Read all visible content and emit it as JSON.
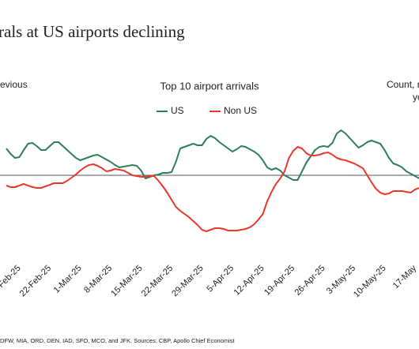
{
  "chart_data": {
    "type": "line",
    "title": "rals at US airports declining",
    "subtitle": "Top 10 airport arrivals",
    "left_axis_label": "evious",
    "right_axis_label": [
      "Count, re",
      "yo"
    ],
    "footnote": "DFW, MIA, ORD, DEN, IAD, SFO, MCO, and JFK. Sources: CBP, Apollo Chief Economist",
    "categories": [
      null,
      null,
      null,
      "Feb-25",
      null,
      null,
      null,
      null,
      null,
      null,
      "22-Feb-25",
      null,
      null,
      null,
      null,
      null,
      null,
      "1-Mar-25",
      null,
      null,
      null,
      null,
      null,
      null,
      "8-Mar-25",
      null,
      null,
      null,
      null,
      null,
      null,
      "15-Mar-25",
      null,
      null,
      null,
      null,
      null,
      null,
      "22-Mar-25",
      null,
      null,
      null,
      null,
      null,
      null,
      "29-Mar-25",
      null,
      null,
      null,
      null,
      null,
      null,
      "5-Apr-25",
      null,
      null,
      null,
      null,
      null,
      null,
      "12-Apr-25",
      null,
      null,
      null,
      null,
      null,
      null,
      "19-Apr-25",
      null,
      null,
      null,
      null,
      null,
      null,
      "26-Apr-25",
      null,
      null,
      null,
      null,
      null,
      null,
      "3-May-25",
      null,
      null,
      null,
      null,
      null,
      null,
      "10-May-25",
      null,
      null,
      null,
      null,
      null,
      null,
      "17-May",
      null
    ],
    "series": [
      {
        "name": "US",
        "color": "#2e7d5b",
        "values": [
          34,
          27,
          22,
          23,
          32,
          40,
          41,
          37,
          32,
          32,
          37,
          42,
          42,
          37,
          32,
          27,
          22,
          19,
          21,
          23,
          25,
          26,
          23,
          20,
          17,
          13,
          10,
          11,
          12,
          13,
          12,
          6,
          -4,
          -2,
          0,
          1,
          3,
          3,
          4,
          17,
          34,
          36,
          38,
          40,
          38,
          38,
          46,
          50,
          47,
          42,
          38,
          34,
          30,
          33,
          37,
          36,
          33,
          30,
          26,
          19,
          10,
          7,
          9,
          6,
          0,
          -3,
          -6,
          -6,
          5,
          16,
          24,
          32,
          36,
          37,
          36,
          41,
          53,
          57,
          53,
          47,
          41,
          35,
          38,
          42,
          44,
          42,
          40,
          32,
          22,
          15,
          13,
          10,
          5,
          2,
          -1,
          -4
        ]
      },
      {
        "name": "Non US",
        "color": "#e8382c",
        "values": [
          -13,
          -15,
          -15,
          -13,
          -11,
          -13,
          -15,
          -16,
          -16,
          -14,
          -12,
          -10,
          -10,
          -10,
          -7,
          -3,
          1,
          6,
          10,
          13,
          14,
          12,
          9,
          5,
          6,
          8,
          7,
          6,
          3,
          0,
          -1,
          -2,
          -2,
          -1,
          -1,
          -7,
          -14,
          -22,
          -31,
          -40,
          -45,
          -49,
          -53,
          -58,
          -63,
          -69,
          -71,
          -69,
          -67,
          -67,
          -68,
          -70,
          -70,
          -70,
          -69,
          -68,
          -66,
          -62,
          -56,
          -49,
          -33,
          -21,
          -11,
          -4,
          5,
          22,
          31,
          36,
          34,
          28,
          25,
          25,
          26,
          28,
          29,
          26,
          22,
          20,
          19,
          17,
          15,
          12,
          9,
          0,
          -9,
          -17,
          -22,
          -24,
          -23,
          -20,
          -20,
          -20,
          -21,
          -22,
          -18,
          -16
        ]
      }
    ],
    "ylim": [
      -100,
      100
    ]
  }
}
